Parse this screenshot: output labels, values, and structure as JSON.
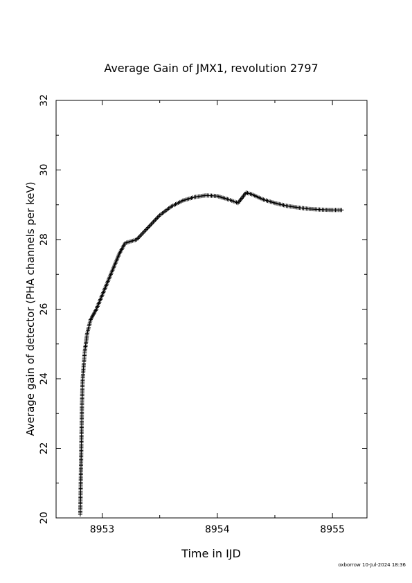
{
  "chart_data": {
    "type": "scatter",
    "title": "Average Gain of JMX1, revolution 2797",
    "xlabel": "Time in IJD",
    "ylabel": "Average gain of detector (PHA channels per keV)",
    "xlim": [
      8952.6,
      8955.3
    ],
    "ylim": [
      20,
      32
    ],
    "xticks": [
      8953,
      8954,
      8955
    ],
    "yticks": [
      20,
      22,
      24,
      26,
      28,
      30,
      32
    ],
    "marker": "plus",
    "grid": false,
    "series": [
      {
        "x": [
          8952.81,
          8952.815,
          8952.82,
          8952.825,
          8952.83,
          8952.84,
          8952.85,
          8952.87,
          8952.9,
          8952.95,
          8953.0,
          8953.05,
          8953.1,
          8953.15,
          8953.2,
          8953.25,
          8953.3,
          8953.4,
          8953.5,
          8953.6,
          8953.7,
          8953.8,
          8953.9,
          8954.0,
          8954.1,
          8954.18,
          8954.25,
          8954.3,
          8954.4,
          8954.5,
          8954.6,
          8954.7,
          8954.8,
          8954.9,
          8955.0,
          8955.08
        ],
        "y": [
          20.1,
          21.2,
          22.2,
          23.3,
          23.9,
          24.4,
          24.8,
          25.3,
          25.7,
          26.0,
          26.4,
          26.8,
          27.2,
          27.6,
          27.9,
          27.95,
          28.0,
          28.35,
          28.7,
          28.95,
          29.12,
          29.22,
          29.27,
          29.25,
          29.15,
          29.05,
          29.35,
          29.3,
          29.15,
          29.05,
          28.97,
          28.92,
          28.88,
          28.86,
          28.85,
          28.85
        ]
      }
    ]
  },
  "footer": {
    "stamp": "oxborrow 10-Jul-2024 18:36"
  }
}
